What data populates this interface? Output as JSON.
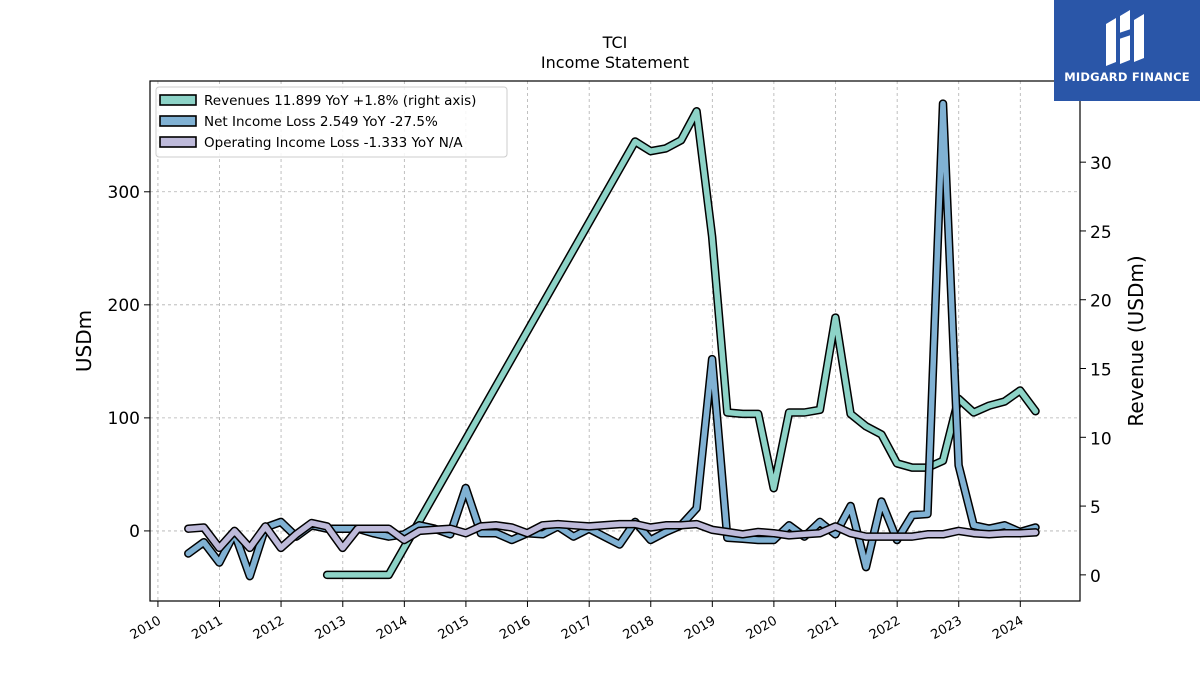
{
  "header": {
    "title": "TCI",
    "subtitle": "Income Statement"
  },
  "brand": {
    "name": "MIDGARD FINANCE",
    "color": "#2a56a8"
  },
  "chart_data": {
    "type": "line",
    "title": "TCI",
    "subtitle": "Income Statement",
    "ylabel": "USDm",
    "ylabel_right": "Revenue (USDm)",
    "ylim": [
      -62,
      398
    ],
    "ylim_right": [
      -1.9,
      35.9
    ],
    "yticks": [
      "0",
      "100",
      "200",
      "300"
    ],
    "yticks_right": [
      "0",
      "5",
      "10",
      "15",
      "20",
      "25",
      "30"
    ],
    "xlim": [
      "2009-11-15",
      "2024-12-20"
    ],
    "xticks": [
      "2010",
      "2011",
      "2012",
      "2013",
      "2014",
      "2015",
      "2016",
      "2017",
      "2018",
      "2019",
      "2020",
      "2021",
      "2022",
      "2023",
      "2024"
    ],
    "grid": true,
    "legend_position": "top-left",
    "series": [
      {
        "name": "Revenues  11.899 YoY +1.8% (right axis)",
        "axis": "right",
        "color": "#8dd3c7",
        "points": [
          [
            "2012-09-30",
            0.0
          ],
          [
            "2013-03-31",
            0.0
          ],
          [
            "2013-06-30",
            0.0
          ],
          [
            "2013-09-30",
            0.0
          ],
          [
            "2017-09-30",
            31.5
          ],
          [
            "2017-12-31",
            30.8
          ],
          [
            "2018-03-31",
            31.0
          ],
          [
            "2018-06-30",
            31.6
          ],
          [
            "2018-09-30",
            33.7
          ],
          [
            "2018-12-31",
            24.6
          ],
          [
            "2019-03-31",
            11.8
          ],
          [
            "2019-06-30",
            11.7
          ],
          [
            "2019-09-30",
            11.7
          ],
          [
            "2019-12-31",
            6.3
          ],
          [
            "2020-03-31",
            11.8
          ],
          [
            "2020-06-30",
            11.8
          ],
          [
            "2020-09-30",
            12.0
          ],
          [
            "2020-12-31",
            18.7
          ],
          [
            "2021-03-31",
            11.7
          ],
          [
            "2021-06-30",
            10.8
          ],
          [
            "2021-09-30",
            10.2
          ],
          [
            "2021-12-31",
            8.1
          ],
          [
            "2022-03-31",
            7.8
          ],
          [
            "2022-06-30",
            7.8
          ],
          [
            "2022-09-30",
            8.3
          ],
          [
            "2022-12-31",
            12.8
          ],
          [
            "2023-03-31",
            11.8
          ],
          [
            "2023-06-30",
            12.3
          ],
          [
            "2023-09-30",
            12.6
          ],
          [
            "2023-12-31",
            13.4
          ],
          [
            "2024-03-31",
            11.9
          ]
        ]
      },
      {
        "name": "Net Income Loss  2.549 YoY -27.5%",
        "axis": "left",
        "color": "#80b1d3",
        "points": [
          [
            "2010-06-30",
            -20
          ],
          [
            "2010-09-30",
            -10
          ],
          [
            "2010-12-31",
            -28
          ],
          [
            "2011-03-31",
            -2
          ],
          [
            "2011-06-30",
            -40
          ],
          [
            "2011-09-30",
            3
          ],
          [
            "2011-12-31",
            8
          ],
          [
            "2012-03-31",
            -5
          ],
          [
            "2012-06-30",
            5
          ],
          [
            "2012-09-30",
            2
          ],
          [
            "2012-12-31",
            2
          ],
          [
            "2013-03-31",
            2
          ],
          [
            "2013-06-30",
            -2
          ],
          [
            "2013-09-30",
            -5
          ],
          [
            "2013-12-31",
            -3
          ],
          [
            "2014-03-31",
            5
          ],
          [
            "2014-06-30",
            2
          ],
          [
            "2014-09-30",
            -3
          ],
          [
            "2014-12-31",
            38
          ],
          [
            "2015-03-31",
            -2
          ],
          [
            "2015-06-30",
            -2
          ],
          [
            "2015-09-30",
            -8
          ],
          [
            "2015-12-31",
            -2
          ],
          [
            "2016-03-31",
            -3
          ],
          [
            "2016-06-30",
            4
          ],
          [
            "2016-09-30",
            -5
          ],
          [
            "2016-12-31",
            2
          ],
          [
            "2017-03-31",
            -5
          ],
          [
            "2017-06-30",
            -12
          ],
          [
            "2017-09-30",
            8
          ],
          [
            "2017-12-31",
            -8
          ],
          [
            "2018-03-31",
            -1
          ],
          [
            "2018-06-30",
            5
          ],
          [
            "2018-09-30",
            20
          ],
          [
            "2018-12-31",
            152
          ],
          [
            "2019-03-31",
            -6
          ],
          [
            "2019-06-30",
            -7
          ],
          [
            "2019-09-30",
            -8
          ],
          [
            "2019-12-31",
            -8
          ],
          [
            "2020-03-31",
            5
          ],
          [
            "2020-06-30",
            -5
          ],
          [
            "2020-09-30",
            8
          ],
          [
            "2020-12-31",
            -3
          ],
          [
            "2021-03-31",
            22
          ],
          [
            "2021-06-30",
            -32
          ],
          [
            "2021-09-30",
            26
          ],
          [
            "2021-12-31",
            -8
          ],
          [
            "2022-03-31",
            14
          ],
          [
            "2022-06-30",
            15
          ],
          [
            "2022-09-30",
            378
          ],
          [
            "2022-12-31",
            58
          ],
          [
            "2023-03-31",
            5
          ],
          [
            "2023-06-30",
            2
          ],
          [
            "2023-09-30",
            5
          ],
          [
            "2023-12-31",
            -1
          ],
          [
            "2024-03-31",
            3
          ]
        ]
      },
      {
        "name": "Operating Income Loss  -1.333 YoY N/A",
        "axis": "left",
        "color": "#bebada",
        "points": [
          [
            "2010-06-30",
            2
          ],
          [
            "2010-09-30",
            3
          ],
          [
            "2010-12-31",
            -15
          ],
          [
            "2011-03-31",
            0
          ],
          [
            "2011-06-30",
            -15
          ],
          [
            "2011-09-30",
            4
          ],
          [
            "2011-12-31",
            -15
          ],
          [
            "2012-03-31",
            -3
          ],
          [
            "2012-06-30",
            7
          ],
          [
            "2012-09-30",
            4
          ],
          [
            "2012-12-31",
            -15
          ],
          [
            "2013-03-31",
            2
          ],
          [
            "2013-06-30",
            2
          ],
          [
            "2013-09-30",
            2
          ],
          [
            "2013-12-31",
            -8
          ],
          [
            "2014-03-31",
            0
          ],
          [
            "2014-06-30",
            1
          ],
          [
            "2014-09-30",
            2
          ],
          [
            "2014-12-31",
            -2
          ],
          [
            "2015-03-31",
            4
          ],
          [
            "2015-06-30",
            5
          ],
          [
            "2015-09-30",
            3
          ],
          [
            "2015-12-31",
            -2
          ],
          [
            "2016-03-31",
            5
          ],
          [
            "2016-06-30",
            6
          ],
          [
            "2016-09-30",
            5
          ],
          [
            "2016-12-31",
            4
          ],
          [
            "2017-03-31",
            5
          ],
          [
            "2017-06-30",
            6
          ],
          [
            "2017-09-30",
            6
          ],
          [
            "2017-12-31",
            3
          ],
          [
            "2018-03-31",
            5
          ],
          [
            "2018-06-30",
            5
          ],
          [
            "2018-09-30",
            6
          ],
          [
            "2018-12-31",
            1
          ],
          [
            "2019-03-31",
            -1
          ],
          [
            "2019-06-30",
            -3
          ],
          [
            "2019-09-30",
            -1
          ],
          [
            "2019-12-31",
            -2
          ],
          [
            "2020-03-31",
            -4
          ],
          [
            "2020-06-30",
            -3
          ],
          [
            "2020-09-30",
            -2
          ],
          [
            "2020-12-31",
            4
          ],
          [
            "2021-03-31",
            -2
          ],
          [
            "2021-06-30",
            -5
          ],
          [
            "2021-09-30",
            -5
          ],
          [
            "2021-12-31",
            -5
          ],
          [
            "2022-03-31",
            -5
          ],
          [
            "2022-06-30",
            -3
          ],
          [
            "2022-09-30",
            -3
          ],
          [
            "2022-12-31",
            0
          ],
          [
            "2023-03-31",
            -2
          ],
          [
            "2023-06-30",
            -3
          ],
          [
            "2023-09-30",
            -2
          ],
          [
            "2023-12-31",
            -2
          ],
          [
            "2024-03-31",
            -1.3
          ]
        ]
      }
    ]
  }
}
